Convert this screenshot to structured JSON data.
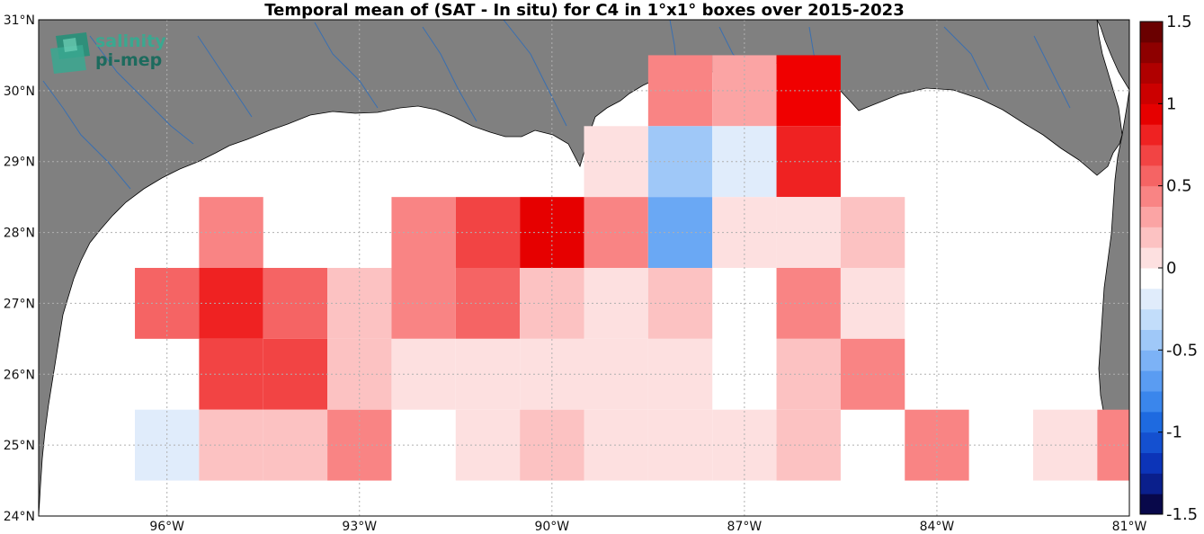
{
  "title": "Temporal mean of (SAT - In situ) for C4 in 1°x1° boxes over 2015-2023",
  "logo": {
    "line1": "salinity",
    "line2": "pi-mep",
    "color1": "#3aa890",
    "color2": "#1d6b5e"
  },
  "colors": {
    "land": "#808080",
    "ocean": "#ffffff",
    "river": "#3a6fb0",
    "grid": "#b0b0b0",
    "coast": "#000000"
  },
  "axes": {
    "lon_ticks": [
      {
        "value": -96,
        "label": "96°W"
      },
      {
        "value": -93,
        "label": "93°W"
      },
      {
        "value": -90,
        "label": "90°W"
      },
      {
        "value": -87,
        "label": "87°W"
      },
      {
        "value": -84,
        "label": "84°W"
      },
      {
        "value": -81,
        "label": "81°W"
      }
    ],
    "lat_ticks": [
      {
        "value": 24,
        "label": "24°N"
      },
      {
        "value": 25,
        "label": "25°N"
      },
      {
        "value": 26,
        "label": "26°N"
      },
      {
        "value": 27,
        "label": "27°N"
      },
      {
        "value": 28,
        "label": "28°N"
      },
      {
        "value": 29,
        "label": "29°N"
      },
      {
        "value": 30,
        "label": "30°N"
      },
      {
        "value": 31,
        "label": "31°N"
      }
    ],
    "lon_range": [
      -98,
      -81
    ],
    "lat_range": [
      24,
      31
    ]
  },
  "colorbar": {
    "ticks": [
      {
        "value": 1.5,
        "label": "1.5"
      },
      {
        "value": 1,
        "label": "1"
      },
      {
        "value": 0.5,
        "label": "0.5"
      },
      {
        "value": 0,
        "label": "0"
      },
      {
        "value": -0.5,
        "label": "-0.5"
      },
      {
        "value": -1,
        "label": "-1"
      },
      {
        "value": -1.5,
        "label": "-1.5"
      }
    ],
    "range": [
      -1.5,
      1.5
    ],
    "steps": [
      "#08084a",
      "#0a1f8c",
      "#0c34b8",
      "#1450d0",
      "#1e6ae0",
      "#3a86ec",
      "#5a9cf2",
      "#7cb2f6",
      "#9fc8f8",
      "#c2ddfa",
      "#e0ecfb",
      "#ffffff",
      "#fde0e0",
      "#fcc2c2",
      "#fba4a4",
      "#f98484",
      "#f56464",
      "#f24444",
      "#ef2222",
      "#e60000",
      "#cc0000",
      "#b00000",
      "#8e0000",
      "#6a0000"
    ]
  },
  "chart_data": {
    "type": "heatmap",
    "cell_size_deg": 1,
    "cells": [
      {
        "lon": -88,
        "lat": 30,
        "color": "#f98484"
      },
      {
        "lon": -87,
        "lat": 30,
        "color": "#fba4a4"
      },
      {
        "lon": -86,
        "lat": 30,
        "color": "#f00000"
      },
      {
        "lon": -89,
        "lat": 29,
        "color": "#fde0e0"
      },
      {
        "lon": -88,
        "lat": 29,
        "color": "#9fc8f8"
      },
      {
        "lon": -87,
        "lat": 29,
        "color": "#e0ecfb"
      },
      {
        "lon": -86,
        "lat": 29,
        "color": "#ef2222"
      },
      {
        "lon": -95,
        "lat": 28,
        "color": "#f98484"
      },
      {
        "lon": -92,
        "lat": 28,
        "color": "#f98484"
      },
      {
        "lon": -91,
        "lat": 28,
        "color": "#f24444"
      },
      {
        "lon": -90,
        "lat": 28,
        "color": "#e60000"
      },
      {
        "lon": -89,
        "lat": 28,
        "color": "#f98484"
      },
      {
        "lon": -88,
        "lat": 28,
        "color": "#6aa8f4"
      },
      {
        "lon": -87,
        "lat": 28,
        "color": "#fde0e0"
      },
      {
        "lon": -86,
        "lat": 28,
        "color": "#fde0e0"
      },
      {
        "lon": -85,
        "lat": 28,
        "color": "#fcc2c2"
      },
      {
        "lon": -96,
        "lat": 27,
        "color": "#f56464"
      },
      {
        "lon": -95,
        "lat": 27,
        "color": "#ef2222"
      },
      {
        "lon": -94,
        "lat": 27,
        "color": "#f56464"
      },
      {
        "lon": -93,
        "lat": 27,
        "color": "#fcc2c2"
      },
      {
        "lon": -92,
        "lat": 27,
        "color": "#f98484"
      },
      {
        "lon": -91,
        "lat": 27,
        "color": "#f56464"
      },
      {
        "lon": -90,
        "lat": 27,
        "color": "#fcc2c2"
      },
      {
        "lon": -89,
        "lat": 27,
        "color": "#fde0e0"
      },
      {
        "lon": -88,
        "lat": 27,
        "color": "#fcc2c2"
      },
      {
        "lon": -86,
        "lat": 27,
        "color": "#f98484"
      },
      {
        "lon": -85,
        "lat": 27,
        "color": "#fde0e0"
      },
      {
        "lon": -95,
        "lat": 26,
        "color": "#f24444"
      },
      {
        "lon": -94,
        "lat": 26,
        "color": "#f24444"
      },
      {
        "lon": -93,
        "lat": 26,
        "color": "#fcc2c2"
      },
      {
        "lon": -92,
        "lat": 26,
        "color": "#fde0e0"
      },
      {
        "lon": -91,
        "lat": 26,
        "color": "#fde0e0"
      },
      {
        "lon": -90,
        "lat": 26,
        "color": "#fde0e0"
      },
      {
        "lon": -89,
        "lat": 26,
        "color": "#fde0e0"
      },
      {
        "lon": -88,
        "lat": 26,
        "color": "#fde0e0"
      },
      {
        "lon": -86,
        "lat": 26,
        "color": "#fcc2c2"
      },
      {
        "lon": -85,
        "lat": 26,
        "color": "#f98484"
      },
      {
        "lon": -96,
        "lat": 25,
        "color": "#e0ecfb"
      },
      {
        "lon": -95,
        "lat": 25,
        "color": "#fcc2c2"
      },
      {
        "lon": -94,
        "lat": 25,
        "color": "#fcc2c2"
      },
      {
        "lon": -93,
        "lat": 25,
        "color": "#f98484"
      },
      {
        "lon": -91,
        "lat": 25,
        "color": "#fde0e0"
      },
      {
        "lon": -90,
        "lat": 25,
        "color": "#fcc2c2"
      },
      {
        "lon": -89,
        "lat": 25,
        "color": "#fde0e0"
      },
      {
        "lon": -88,
        "lat": 25,
        "color": "#fde0e0"
      },
      {
        "lon": -87,
        "lat": 25,
        "color": "#fde0e0"
      },
      {
        "lon": -86,
        "lat": 25,
        "color": "#fcc2c2"
      },
      {
        "lon": -84,
        "lat": 25,
        "color": "#f98484"
      },
      {
        "lon": -82,
        "lat": 25,
        "color": "#fde0e0"
      },
      {
        "lon": -81,
        "lat": 25,
        "color": "#f98484"
      }
    ]
  }
}
